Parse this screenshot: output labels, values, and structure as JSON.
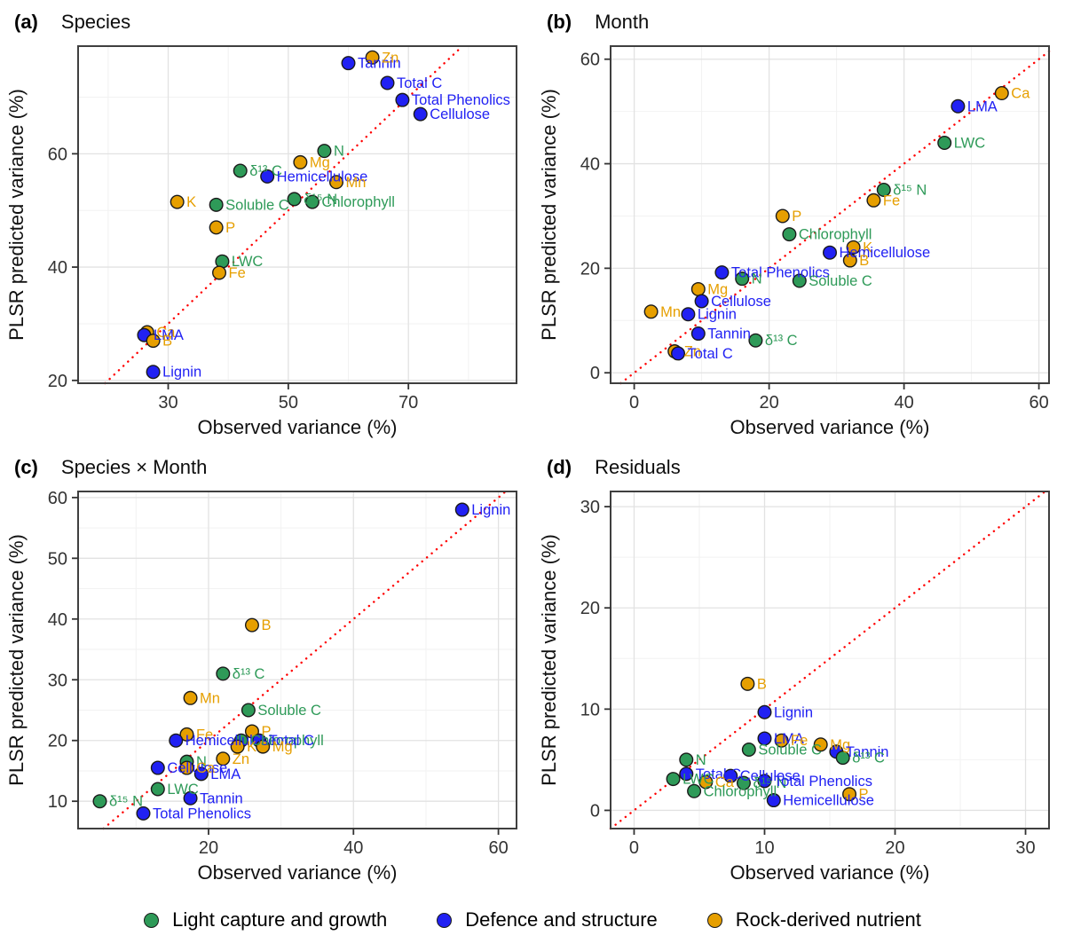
{
  "figure": {
    "x_axis_title": "Observed variance (%)",
    "y_axis_title": "PLSR predicted variance (%)",
    "legend_items": [
      {
        "group": "light",
        "label": "Light capture and growth"
      },
      {
        "group": "defence",
        "label": "Defence and structure"
      },
      {
        "group": "rock",
        "label": "Rock-derived nutrient"
      }
    ],
    "colors": {
      "light": "#2E9A58",
      "defence": "#2121F3",
      "rock": "#E69F00",
      "identity_line": "#FF0000",
      "grid_major": "#E2E2E2",
      "grid_minor": "#F2F2F2",
      "panel_border": "#3F3F3F",
      "tick_text": "#333333",
      "axis_title_text": "#111111",
      "point_stroke": "#1A1A1A"
    }
  },
  "chart_data": [
    {
      "id": "a",
      "tag": "(a)",
      "title": "Species",
      "type": "scatter",
      "xlabel": "Observed variance (%)",
      "ylabel": "PLSR predicted variance (%)",
      "xlim": [
        15,
        88
      ],
      "ylim": [
        19.5,
        79
      ],
      "xticks": [
        30,
        50,
        70
      ],
      "yticks": [
        20,
        40,
        60
      ],
      "xminor": [
        20,
        40,
        60,
        80
      ],
      "yminor": [
        30,
        50,
        70
      ],
      "reference_line": "y = x",
      "points": [
        {
          "label": "Tannin",
          "group": "defence",
          "x": 60,
          "y": 76
        },
        {
          "label": "Zn",
          "group": "rock",
          "x": 64,
          "y": 77
        },
        {
          "label": "Total C",
          "group": "defence",
          "x": 66.5,
          "y": 72.5
        },
        {
          "label": "Total Phenolics",
          "group": "defence",
          "x": 69,
          "y": 69.5
        },
        {
          "label": "Cellulose",
          "group": "defence",
          "x": 72,
          "y": 67
        },
        {
          "label": "N",
          "group": "light",
          "x": 56,
          "y": 60.5
        },
        {
          "label": "Mg",
          "group": "rock",
          "x": 52,
          "y": 58.5
        },
        {
          "label": "δ¹³ C",
          "group": "light",
          "x": 42,
          "y": 57
        },
        {
          "label": "Hemicellulose",
          "group": "defence",
          "x": 46.5,
          "y": 56
        },
        {
          "label": "Mn",
          "group": "rock",
          "x": 58,
          "y": 55
        },
        {
          "label": "K",
          "group": "rock",
          "x": 31.5,
          "y": 51.5
        },
        {
          "label": "Soluble C",
          "group": "light",
          "x": 38,
          "y": 51
        },
        {
          "label": "δ¹⁵ N",
          "group": "light",
          "x": 51,
          "y": 52
        },
        {
          "label": "Chlorophyll",
          "group": "light",
          "x": 54,
          "y": 51.5
        },
        {
          "label": "P",
          "group": "rock",
          "x": 38,
          "y": 47
        },
        {
          "label": "LWC",
          "group": "light",
          "x": 39,
          "y": 41
        },
        {
          "label": "Fe",
          "group": "rock",
          "x": 38.5,
          "y": 39
        },
        {
          "label": "Ca",
          "group": "rock",
          "x": 26.5,
          "y": 28.5
        },
        {
          "label": "LMA",
          "group": "defence",
          "x": 26,
          "y": 28
        },
        {
          "label": "B",
          "group": "rock",
          "x": 27.5,
          "y": 27
        },
        {
          "label": "Lignin",
          "group": "defence",
          "x": 27.5,
          "y": 21.5
        }
      ]
    },
    {
      "id": "b",
      "tag": "(b)",
      "title": "Month",
      "type": "scatter",
      "xlabel": "Observed variance (%)",
      "ylabel": "PLSR predicted variance (%)",
      "xlim": [
        -3.5,
        61.5
      ],
      "ylim": [
        -2,
        62.5
      ],
      "xticks": [
        0,
        20,
        40,
        60
      ],
      "yticks": [
        0,
        20,
        40,
        60
      ],
      "xminor": [
        10,
        30,
        50
      ],
      "yminor": [
        10,
        30,
        50
      ],
      "reference_line": "y = x",
      "points": [
        {
          "label": "Ca",
          "group": "rock",
          "x": 54.5,
          "y": 53.5
        },
        {
          "label": "LMA",
          "group": "defence",
          "x": 48,
          "y": 51
        },
        {
          "label": "LWC",
          "group": "light",
          "x": 46,
          "y": 44
        },
        {
          "label": "δ¹⁵ N",
          "group": "light",
          "x": 37,
          "y": 35
        },
        {
          "label": "Fe",
          "group": "rock",
          "x": 35.5,
          "y": 33
        },
        {
          "label": "P",
          "group": "rock",
          "x": 22,
          "y": 30
        },
        {
          "label": "Chlorophyll",
          "group": "light",
          "x": 23,
          "y": 26.5
        },
        {
          "label": "K",
          "group": "rock",
          "x": 32.5,
          "y": 24
        },
        {
          "label": "Hemicellulose",
          "group": "defence",
          "x": 29,
          "y": 23
        },
        {
          "label": "B",
          "group": "rock",
          "x": 32,
          "y": 21.5
        },
        {
          "label": "Total Phenolics",
          "group": "defence",
          "x": 13,
          "y": 19.2
        },
        {
          "label": "N",
          "group": "light",
          "x": 16,
          "y": 18
        },
        {
          "label": "Soluble C",
          "group": "light",
          "x": 24.5,
          "y": 17.6
        },
        {
          "label": "Mg",
          "group": "rock",
          "x": 9.5,
          "y": 16
        },
        {
          "label": "Cellulose",
          "group": "defence",
          "x": 10,
          "y": 13.7
        },
        {
          "label": "Mn",
          "group": "rock",
          "x": 2.5,
          "y": 11.7
        },
        {
          "label": "Lignin",
          "group": "defence",
          "x": 8,
          "y": 11.2
        },
        {
          "label": "Tannin",
          "group": "defence",
          "x": 9.5,
          "y": 7.5
        },
        {
          "label": "δ¹³ C",
          "group": "light",
          "x": 18,
          "y": 6.2
        },
        {
          "label": "Zn",
          "group": "rock",
          "x": 6,
          "y": 4.1
        },
        {
          "label": "Total C",
          "group": "defence",
          "x": 6.5,
          "y": 3.7
        }
      ]
    },
    {
      "id": "c",
      "tag": "(c)",
      "title": "Species × Month",
      "type": "scatter",
      "xlabel": "Observed variance (%)",
      "ylabel": "PLSR predicted variance (%)",
      "xlim": [
        2,
        62.5
      ],
      "ylim": [
        5.5,
        61
      ],
      "xticks": [
        20,
        40,
        60
      ],
      "yticks": [
        10,
        20,
        30,
        40,
        50,
        60
      ],
      "xminor": [
        10,
        30,
        50
      ],
      "yminor": [
        15,
        25,
        35,
        45,
        55
      ],
      "reference_line": "y = x",
      "points": [
        {
          "label": "Lignin",
          "group": "defence",
          "x": 55,
          "y": 58
        },
        {
          "label": "B",
          "group": "rock",
          "x": 26,
          "y": 39
        },
        {
          "label": "δ¹³ C",
          "group": "light",
          "x": 22,
          "y": 31
        },
        {
          "label": "Mn",
          "group": "rock",
          "x": 17.5,
          "y": 27
        },
        {
          "label": "Soluble C",
          "group": "light",
          "x": 25.5,
          "y": 25
        },
        {
          "label": "P",
          "group": "rock",
          "x": 26,
          "y": 21.5
        },
        {
          "label": "Fe",
          "group": "rock",
          "x": 17,
          "y": 21
        },
        {
          "label": "Hemicellulose",
          "group": "defence",
          "x": 15.5,
          "y": 20
        },
        {
          "label": "Chlorophyll",
          "group": "light",
          "x": 24.5,
          "y": 20
        },
        {
          "label": "Total C",
          "group": "defence",
          "x": 27,
          "y": 20
        },
        {
          "label": "K",
          "group": "rock",
          "x": 24,
          "y": 19
        },
        {
          "label": "Mg",
          "group": "rock",
          "x": 27.5,
          "y": 19
        },
        {
          "label": "Zn",
          "group": "rock",
          "x": 22,
          "y": 17
        },
        {
          "label": "N",
          "group": "light",
          "x": 17,
          "y": 16.5
        },
        {
          "label": "Cellulose",
          "group": "defence",
          "x": 13,
          "y": 15.5
        },
        {
          "label": "Ca",
          "group": "rock",
          "x": 17,
          "y": 15.5
        },
        {
          "label": "LMA",
          "group": "defence",
          "x": 19,
          "y": 14.5
        },
        {
          "label": "LWC",
          "group": "light",
          "x": 13,
          "y": 12
        },
        {
          "label": "δ¹⁵ N",
          "group": "light",
          "x": 5,
          "y": 10
        },
        {
          "label": "Tannin",
          "group": "defence",
          "x": 17.5,
          "y": 10.5
        },
        {
          "label": "Total Phenolics",
          "group": "defence",
          "x": 11,
          "y": 8
        }
      ]
    },
    {
      "id": "d",
      "tag": "(d)",
      "title": "Residuals",
      "type": "scatter",
      "xlabel": "Observed variance (%)",
      "ylabel": "PLSR predicted variance (%)",
      "xlim": [
        -1.8,
        31.8
      ],
      "ylim": [
        -1.8,
        31.5
      ],
      "xticks": [
        0,
        10,
        20,
        30
      ],
      "yticks": [
        0,
        10,
        20,
        30
      ],
      "xminor": [
        5,
        15,
        25
      ],
      "yminor": [
        5,
        15,
        25
      ],
      "reference_line": "y = x",
      "points": [
        {
          "label": "B",
          "group": "rock",
          "x": 8.7,
          "y": 12.5
        },
        {
          "label": "Lignin",
          "group": "defence",
          "x": 10,
          "y": 9.7
        },
        {
          "label": "LMA",
          "group": "defence",
          "x": 10,
          "y": 7.1
        },
        {
          "label": "Fe",
          "group": "rock",
          "x": 11.3,
          "y": 6.9
        },
        {
          "label": "Soluble C",
          "group": "light",
          "x": 8.8,
          "y": 6
        },
        {
          "label": "Mg",
          "group": "rock",
          "x": 14.3,
          "y": 6.5
        },
        {
          "label": "Tannin",
          "group": "defence",
          "x": 15.5,
          "y": 5.8
        },
        {
          "label": "δ¹³ C",
          "group": "light",
          "x": 16,
          "y": 5.2
        },
        {
          "label": "N",
          "group": "light",
          "x": 4,
          "y": 5
        },
        {
          "label": "Total C",
          "group": "defence",
          "x": 4,
          "y": 3.6
        },
        {
          "label": "LWC",
          "group": "light",
          "x": 3,
          "y": 3.1
        },
        {
          "label": "Ca",
          "group": "rock",
          "x": 5.5,
          "y": 2.8
        },
        {
          "label": "Cellulose",
          "group": "defence",
          "x": 7.4,
          "y": 3.4
        },
        {
          "label": "δ¹⁵ N",
          "group": "light",
          "x": 8.4,
          "y": 2.7
        },
        {
          "label": "Total Phenolics",
          "group": "defence",
          "x": 10,
          "y": 2.9
        },
        {
          "label": "Chlorophyll",
          "group": "light",
          "x": 4.6,
          "y": 1.9
        },
        {
          "label": "Hemicellulose",
          "group": "defence",
          "x": 10.7,
          "y": 1
        },
        {
          "label": "P",
          "group": "rock",
          "x": 16.5,
          "y": 1.6
        }
      ]
    }
  ]
}
